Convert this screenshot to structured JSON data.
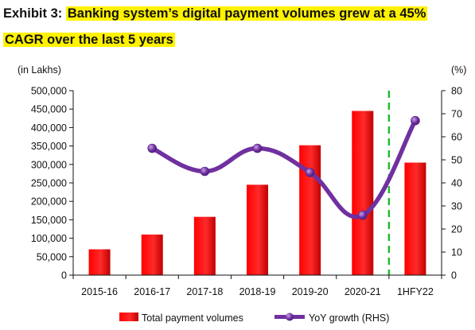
{
  "title": {
    "prefix": "Exhibit 3:",
    "line1": "Banking system’s digital payment volumes grew at a 45%",
    "line2": "CAGR over the last 5 years"
  },
  "chart_data": {
    "type": "bar+line",
    "categories": [
      "2015-16",
      "2016-17",
      "2017-18",
      "2018-19",
      "2019-20",
      "2020-21",
      "1HFY22"
    ],
    "series": [
      {
        "name": "Total payment volumes",
        "type": "bar",
        "axis": "left",
        "color": "#ff0000",
        "values": [
          70000,
          110000,
          158000,
          245000,
          352000,
          445000,
          305000
        ]
      },
      {
        "name": "YoY growth (RHS)",
        "type": "line",
        "axis": "right",
        "color": "#7030a0",
        "values": [
          null,
          55,
          45,
          55,
          44.5,
          26,
          67
        ]
      }
    ],
    "left_axis": {
      "unit_label": "(in Lakhs)",
      "min": 0,
      "max": 500000,
      "step": 50000,
      "tick_labels": [
        "0",
        "50,000",
        "100,000",
        "150,000",
        "200,000",
        "250,000",
        "300,000",
        "350,000",
        "400,000",
        "450,000",
        "500,000"
      ]
    },
    "right_axis": {
      "unit_label": "(%)",
      "min": 0,
      "max": 80,
      "step": 10,
      "tick_labels": [
        "0",
        "10",
        "20",
        "30",
        "40",
        "50",
        "60",
        "70",
        "80"
      ]
    },
    "dashed_divider_after": "2020-21",
    "divider_color": "#22bb33",
    "grid": false,
    "legend_position": "bottom"
  }
}
